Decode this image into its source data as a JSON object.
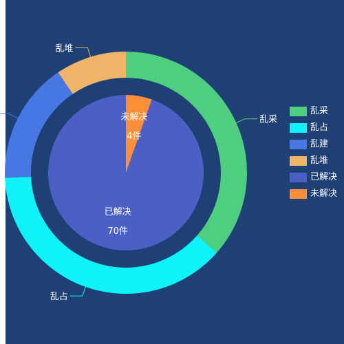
{
  "chart_data": {
    "type": "pie",
    "outer_ring": {
      "slices": [
        {
          "name": "乱采",
          "value": 27,
          "color": "#4ecf7f"
        },
        {
          "name": "乱占",
          "value": 28,
          "color": "#0ff3f8"
        },
        {
          "name": "乱建",
          "value": 12,
          "color": "#4677e3"
        },
        {
          "name": "乱堆",
          "value": 7,
          "color": "#efb468"
        }
      ]
    },
    "inner_pie": {
      "slices": [
        {
          "name": "已解决",
          "value": 70,
          "label": "70件",
          "color": "#4b5fc4"
        },
        {
          "name": "未解决",
          "value": 4,
          "label": "4件",
          "color": "#fe8f39"
        }
      ]
    },
    "legend": {
      "position": "right",
      "items": [
        {
          "label": "乱采",
          "color": "#4ecf7f"
        },
        {
          "label": "乱占",
          "color": "#0ff3f8"
        },
        {
          "label": "乱建",
          "color": "#4677e3"
        },
        {
          "label": "乱堆",
          "color": "#efb468"
        },
        {
          "label": "已解决",
          "color": "#4b5fc4"
        },
        {
          "label": "未解决",
          "color": "#fe8f39"
        }
      ]
    }
  }
}
